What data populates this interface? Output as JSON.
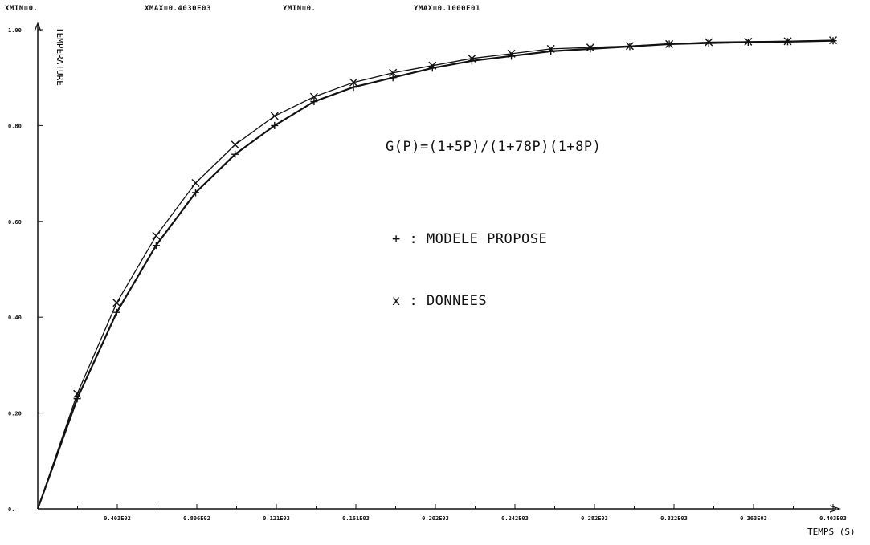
{
  "header": {
    "xmin": "XMIN=0.",
    "xmax": "XMAX=0.4030E03",
    "ymin": "YMIN=0.",
    "ymax": "YMAX=0.1000E01"
  },
  "annotations": {
    "transfer_function": "G(P)=(1+5P)/(1+78P)(1+8P)",
    "legend_model": "+ : MODELE PROPOSE",
    "legend_data": "x : DONNEES"
  },
  "chart_data": {
    "type": "line",
    "xlabel": "TEMPS (S)",
    "ylabel": "TEMPERATURE",
    "xlim": [
      0,
      403
    ],
    "ylim": [
      0,
      1
    ],
    "grid": false,
    "x_tick_labels": [
      "0.",
      "0.403E02",
      "0.806E02",
      "0.121E03",
      "0.161E03",
      "0.202E03",
      "0.242E03",
      "0.282E03",
      "0.322E03",
      "0.363E03",
      "0.403E03"
    ],
    "y_tick_labels": [
      "0.",
      "0.20",
      "0.40",
      "0.60",
      "0.80",
      "1.00"
    ],
    "series": [
      {
        "name": "MODELE PROPOSE",
        "marker": "+",
        "x": [
          0,
          20,
          40,
          60,
          80,
          100,
          120,
          140,
          160,
          180,
          200,
          220,
          240,
          260,
          280,
          300,
          320,
          340,
          360,
          380,
          403
        ],
        "y": [
          0,
          0.23,
          0.41,
          0.55,
          0.66,
          0.74,
          0.8,
          0.85,
          0.88,
          0.9,
          0.92,
          0.935,
          0.945,
          0.955,
          0.96,
          0.965,
          0.97,
          0.972,
          0.974,
          0.975,
          0.977
        ]
      },
      {
        "name": "DONNEES",
        "marker": "x",
        "x": [
          0,
          20,
          40,
          60,
          80,
          100,
          120,
          140,
          160,
          180,
          200,
          220,
          240,
          260,
          280,
          300,
          320,
          340,
          360,
          380,
          403
        ],
        "y": [
          0,
          0.24,
          0.43,
          0.57,
          0.68,
          0.76,
          0.82,
          0.86,
          0.89,
          0.91,
          0.925,
          0.94,
          0.95,
          0.96,
          0.963,
          0.966,
          0.97,
          0.974,
          0.975,
          0.976,
          0.978
        ]
      }
    ]
  },
  "colors": {
    "ink": "#111111",
    "background": "#ffffff"
  }
}
